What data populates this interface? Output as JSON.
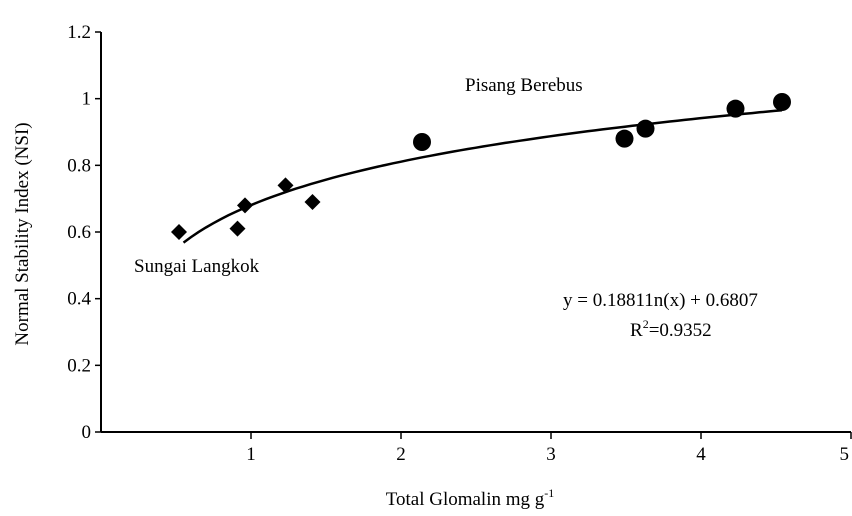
{
  "chart_data": {
    "type": "scatter",
    "xlabel": "Total Glomalin mg g",
    "xlabel_sup": "-1",
    "ylabel": "Normal Stability Index (NSI)",
    "xlim": [
      0,
      5
    ],
    "ylim": [
      0,
      1.2
    ],
    "x_ticks": [
      1,
      2,
      3,
      4,
      5
    ],
    "x_tick_labels": [
      "1",
      "2",
      "3",
      "4",
      "5"
    ],
    "y_ticks": [
      0,
      0.2,
      0.4,
      0.6,
      0.8,
      1,
      1.2
    ],
    "y_tick_labels": [
      "0",
      "0.2",
      "0.4",
      "0.6",
      "0.8",
      "1",
      "1.2"
    ],
    "grid": false,
    "series": [
      {
        "name": "Sungai Langkok",
        "marker": "diamond",
        "color": "#000000",
        "x": [
          0.52,
          0.91,
          0.96,
          1.23,
          1.41
        ],
        "y": [
          0.6,
          0.61,
          0.68,
          0.74,
          0.69
        ]
      },
      {
        "name": "Pisang Berebus",
        "marker": "circle",
        "color": "#000000",
        "x": [
          2.14,
          3.49,
          3.63,
          4.23,
          4.54
        ],
        "y": [
          0.87,
          0.88,
          0.91,
          0.97,
          0.99
        ]
      }
    ],
    "trendline": {
      "type": "log",
      "a": 0.1881,
      "b": 0.6807,
      "x_range": [
        0.55,
        4.54
      ]
    },
    "annotations": {
      "equation": "y = 0.18811n(x) + 0.6807",
      "r2_prefix": "R",
      "r2_sup": "2",
      "r2_value": "=0.9352"
    }
  }
}
